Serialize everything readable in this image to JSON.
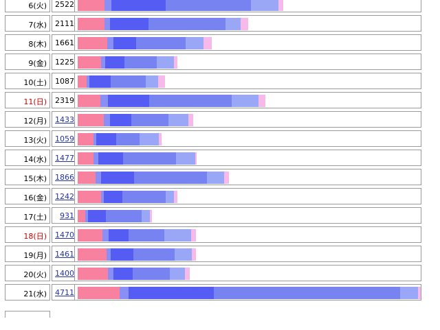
{
  "colors": {
    "seg1": "#f8819f",
    "seg2": "#8a8ff5",
    "seg3": "#545cf3",
    "seg4": "#7683f0",
    "seg5": "#9aa6f6",
    "seg6": "#f7b8ea",
    "holiday_text": "#cc0000",
    "link_text": "#2233aa"
  },
  "rows": [
    {
      "date": "6(火)",
      "count": "2522",
      "link": false,
      "holiday": false,
      "segments": [
        39,
        10,
        79,
        124,
        40,
        7
      ]
    },
    {
      "date": "7(水)",
      "count": "2111",
      "link": false,
      "holiday": false,
      "segments": [
        39,
        8,
        56,
        112,
        22,
        11
      ]
    },
    {
      "date": "8(木)",
      "count": "1661",
      "link": false,
      "holiday": false,
      "segments": [
        43,
        9,
        33,
        72,
        26,
        12
      ]
    },
    {
      "date": "9(金)",
      "count": "1225",
      "link": false,
      "holiday": false,
      "segments": [
        34,
        6,
        28,
        47,
        25,
        5
      ]
    },
    {
      "date": "10(土)",
      "count": "1087",
      "link": false,
      "holiday": false,
      "segments": [
        13,
        4,
        31,
        51,
        18,
        10
      ]
    },
    {
      "date": "11(日)",
      "count": "2319",
      "link": false,
      "holiday": true,
      "segments": [
        33,
        11,
        60,
        120,
        39,
        10
      ]
    },
    {
      "date": "12(月)",
      "count": "1433",
      "link": true,
      "holiday": false,
      "segments": [
        38,
        9,
        31,
        54,
        29,
        7
      ]
    },
    {
      "date": "13(火)",
      "count": "1059",
      "link": true,
      "holiday": false,
      "segments": [
        23,
        4,
        29,
        34,
        28,
        4
      ]
    },
    {
      "date": "14(水)",
      "count": "1477",
      "link": true,
      "holiday": false,
      "segments": [
        23,
        7,
        36,
        77,
        28,
        2
      ]
    },
    {
      "date": "15(木)",
      "count": "1866",
      "link": true,
      "holiday": false,
      "segments": [
        26,
        8,
        48,
        106,
        25,
        7
      ]
    },
    {
      "date": "16(金)",
      "count": "1242",
      "link": true,
      "holiday": false,
      "segments": [
        34,
        4,
        27,
        63,
        12,
        5
      ]
    },
    {
      "date": "17(土)",
      "count": "931",
      "link": true,
      "holiday": false,
      "segments": [
        11,
        4,
        26,
        52,
        12,
        3
      ]
    },
    {
      "date": "18(日)",
      "count": "1470",
      "link": true,
      "holiday": true,
      "segments": [
        36,
        9,
        29,
        52,
        39,
        7
      ]
    },
    {
      "date": "19(月)",
      "count": "1461",
      "link": true,
      "holiday": false,
      "segments": [
        42,
        6,
        33,
        60,
        25,
        6
      ]
    },
    {
      "date": "20(火)",
      "count": "1400",
      "link": true,
      "holiday": false,
      "segments": [
        44,
        8,
        28,
        54,
        22,
        7
      ]
    },
    {
      "date": "21(水)",
      "count": "4711",
      "link": true,
      "holiday": false,
      "segments": [
        61,
        13,
        124,
        271,
        26,
        8
      ]
    }
  ]
}
